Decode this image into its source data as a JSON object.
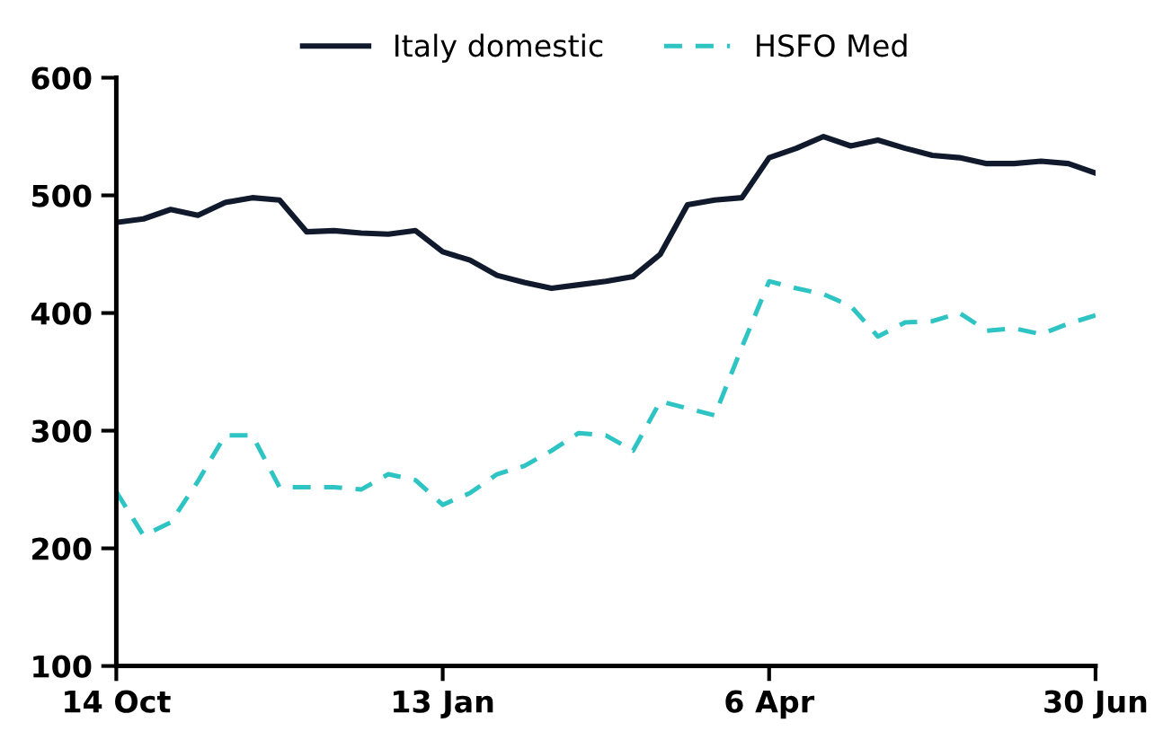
{
  "chart_data": {
    "type": "line",
    "categories": [
      "14 Oct",
      null,
      null,
      null,
      null,
      null,
      null,
      null,
      null,
      null,
      null,
      null,
      "13 Jan",
      null,
      null,
      null,
      null,
      null,
      null,
      null,
      null,
      null,
      null,
      null,
      "6 Apr",
      null,
      null,
      null,
      null,
      null,
      null,
      null,
      null,
      null,
      null,
      null,
      "30 Jun"
    ],
    "series": [
      {
        "name": "Italy domestic",
        "color": "#101a2c",
        "line_style": "solid",
        "values": [
          477,
          480,
          488,
          483,
          494,
          498,
          496,
          469,
          470,
          468,
          467,
          470,
          452,
          445,
          432,
          426,
          421,
          424,
          427,
          431,
          450,
          492,
          496,
          498,
          532,
          540,
          550,
          542,
          547,
          540,
          534,
          532,
          527,
          527,
          529,
          527,
          519
        ]
      },
      {
        "name": "HSFO Med",
        "color": "#2ec4c4",
        "line_style": "dashed",
        "values": [
          248,
          211,
          222,
          257,
          296,
          296,
          252,
          252,
          252,
          250,
          263,
          258,
          237,
          247,
          263,
          270,
          283,
          298,
          296,
          283,
          325,
          319,
          313,
          371,
          427,
          421,
          416,
          406,
          380,
          392,
          393,
          400,
          385,
          387,
          382,
          391,
          398
        ]
      }
    ],
    "ylim": [
      100,
      600
    ],
    "yticks": [
      100,
      200,
      300,
      400,
      500,
      600
    ],
    "grid": false,
    "legend": "top",
    "marker": "none"
  }
}
